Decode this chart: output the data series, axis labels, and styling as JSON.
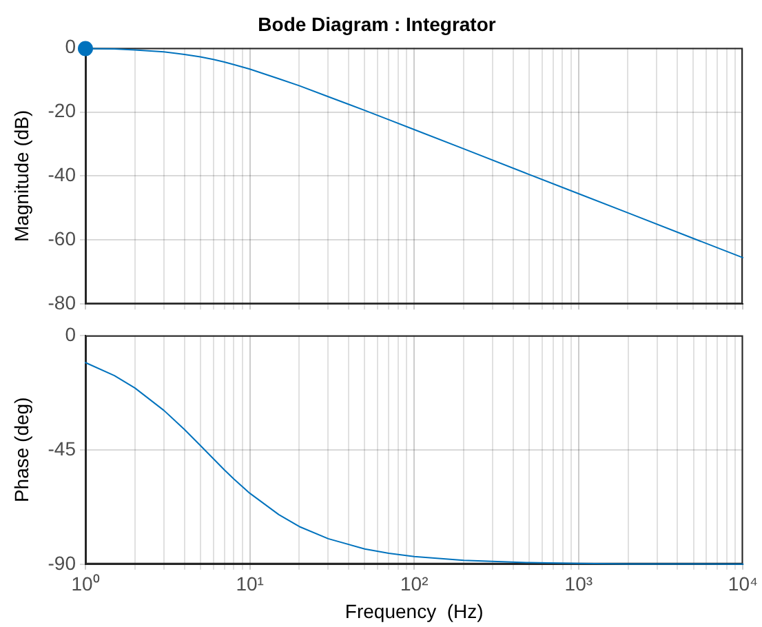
{
  "chart_data": [
    {
      "type": "line",
      "title": "Bode Diagram : Integrator",
      "ylabel": "Magnitude (dB)",
      "log": "x",
      "xlim": [
        1,
        10000
      ],
      "xticks": [
        {
          "value": 1,
          "label": null
        },
        {
          "value": 2,
          "label": null
        },
        {
          "value": 3,
          "label": null
        },
        {
          "value": 4,
          "label": null
        },
        {
          "value": 5,
          "label": null
        },
        {
          "value": 6,
          "label": null
        },
        {
          "value": 7,
          "label": null
        },
        {
          "value": 8,
          "label": null
        },
        {
          "value": 9,
          "label": null
        },
        {
          "value": 10,
          "label": null
        },
        {
          "value": 20,
          "label": null
        },
        {
          "value": 30,
          "label": null
        },
        {
          "value": 40,
          "label": null
        },
        {
          "value": 50,
          "label": null
        },
        {
          "value": 60,
          "label": null
        },
        {
          "value": 70,
          "label": null
        },
        {
          "value": 80,
          "label": null
        },
        {
          "value": 90,
          "label": null
        },
        {
          "value": 100,
          "label": null
        },
        {
          "value": 200,
          "label": null
        },
        {
          "value": 300,
          "label": null
        },
        {
          "value": 400,
          "label": null
        },
        {
          "value": 500,
          "label": null
        },
        {
          "value": 600,
          "label": null
        },
        {
          "value": 700,
          "label": null
        },
        {
          "value": 800,
          "label": null
        },
        {
          "value": 900,
          "label": null
        },
        {
          "value": 1000,
          "label": null
        },
        {
          "value": 2000,
          "label": null
        },
        {
          "value": 3000,
          "label": null
        },
        {
          "value": 4000,
          "label": null
        },
        {
          "value": 5000,
          "label": null
        },
        {
          "value": 6000,
          "label": null
        },
        {
          "value": 7000,
          "label": null
        },
        {
          "value": 8000,
          "label": null
        },
        {
          "value": 9000,
          "label": null
        },
        {
          "value": 10000,
          "label": null
        }
      ],
      "ylim": [
        -80,
        0
      ],
      "yticks": [
        -80,
        -60,
        -40,
        -20,
        0
      ],
      "grid": true,
      "tick_labels": "y",
      "marker": "none",
      "line_style": "solid",
      "series": [
        {
          "color": "#0072bd",
          "x": [
            1,
            1.5,
            2,
            3,
            4,
            5,
            6,
            7,
            8,
            10,
            15,
            20,
            30,
            50,
            70,
            100,
            200,
            500,
            1000,
            2000,
            5000,
            10000
          ],
          "values": [
            -0.2,
            -0.3,
            -0.6,
            -1.2,
            -2.0,
            -2.8,
            -3.6,
            -4.4,
            -5.2,
            -6.6,
            -9.6,
            -11.8,
            -15.2,
            -19.5,
            -22.4,
            -25.5,
            -31.5,
            -39.5,
            -45.5,
            -51.5,
            -59.5,
            -65.5
          ]
        },
        {
          "type": "scatter",
          "marker": "circle",
          "color": "#0072bd",
          "x": [
            1
          ],
          "values": [
            -0.2
          ]
        }
      ]
    },
    {
      "type": "line",
      "xlabel": "Frequency  (Hz)",
      "ylabel": "Phase (deg)",
      "log": "x",
      "xlim": [
        1,
        10000
      ],
      "xticks": [
        {
          "value": 1,
          "label": "10⁰"
        },
        {
          "value": 2,
          "label": null
        },
        {
          "value": 3,
          "label": null
        },
        {
          "value": 4,
          "label": null
        },
        {
          "value": 5,
          "label": null
        },
        {
          "value": 6,
          "label": null
        },
        {
          "value": 7,
          "label": null
        },
        {
          "value": 8,
          "label": null
        },
        {
          "value": 9,
          "label": null
        },
        {
          "value": 10,
          "label": "10¹"
        },
        {
          "value": 20,
          "label": null
        },
        {
          "value": 30,
          "label": null
        },
        {
          "value": 40,
          "label": null
        },
        {
          "value": 50,
          "label": null
        },
        {
          "value": 60,
          "label": null
        },
        {
          "value": 70,
          "label": null
        },
        {
          "value": 80,
          "label": null
        },
        {
          "value": 90,
          "label": null
        },
        {
          "value": 100,
          "label": "10²"
        },
        {
          "value": 200,
          "label": null
        },
        {
          "value": 300,
          "label": null
        },
        {
          "value": 400,
          "label": null
        },
        {
          "value": 500,
          "label": null
        },
        {
          "value": 600,
          "label": null
        },
        {
          "value": 700,
          "label": null
        },
        {
          "value": 800,
          "label": null
        },
        {
          "value": 900,
          "label": null
        },
        {
          "value": 1000,
          "label": "10³"
        },
        {
          "value": 2000,
          "label": null
        },
        {
          "value": 3000,
          "label": null
        },
        {
          "value": 4000,
          "label": null
        },
        {
          "value": 5000,
          "label": null
        },
        {
          "value": 6000,
          "label": null
        },
        {
          "value": 7000,
          "label": null
        },
        {
          "value": 8000,
          "label": null
        },
        {
          "value": 9000,
          "label": null
        },
        {
          "value": 10000,
          "label": "10⁴"
        }
      ],
      "ylim": [
        -90,
        0
      ],
      "yticks": [
        -90,
        -45,
        0
      ],
      "grid": true,
      "marker": "none",
      "line_style": "solid",
      "series": [
        {
          "color": "#0072bd",
          "x": [
            1,
            1.5,
            2,
            3,
            4,
            5,
            6,
            7,
            8,
            10,
            15,
            20,
            30,
            50,
            70,
            100,
            200,
            500,
            1000,
            2000,
            5000,
            10000
          ],
          "values": [
            -10.7,
            -15.8,
            -20.7,
            -29.5,
            -37.0,
            -43.3,
            -48.5,
            -52.9,
            -56.5,
            -62.1,
            -70.5,
            -75.2,
            -80.0,
            -84.0,
            -85.7,
            -87.0,
            -88.5,
            -89.4,
            -89.7,
            -89.9,
            -89.9,
            -90.0
          ]
        }
      ]
    }
  ]
}
